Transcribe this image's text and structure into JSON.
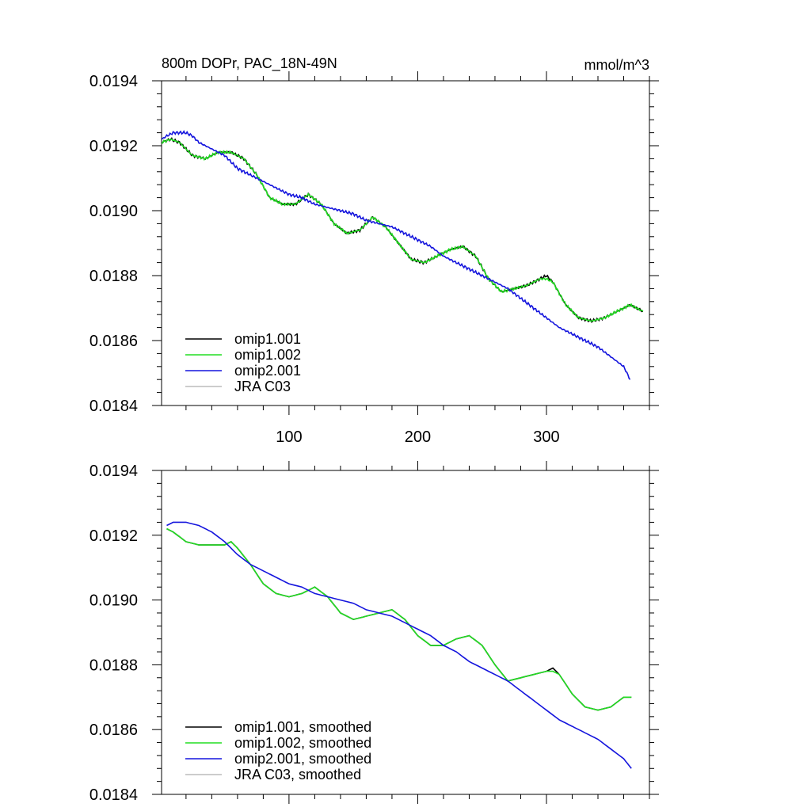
{
  "chart_data": [
    {
      "type": "line",
      "title": "800m DOPr, PAC_18N-49N",
      "units": "mmol/m^3",
      "xlim": [
        1,
        380
      ],
      "ylim": [
        0.0184,
        0.0194
      ],
      "xticks": [
        100,
        200,
        300
      ],
      "xtick_labels": [
        "100",
        "200",
        "300"
      ],
      "yticks": [
        0.0184,
        0.0186,
        0.0188,
        0.019,
        0.0192,
        0.0194
      ],
      "ytick_labels": [
        "0.0184",
        "0.0186",
        "0.0188",
        "0.0190",
        "0.0192",
        "0.0194"
      ],
      "legend_position": "bottom-left",
      "series": [
        {
          "name": "omip1.001",
          "color": "#000000",
          "x": [
            1,
            8,
            15,
            25,
            35,
            45,
            55,
            65,
            75,
            85,
            95,
            105,
            115,
            125,
            135,
            145,
            155,
            165,
            175,
            185,
            195,
            205,
            215,
            225,
            235,
            245,
            255,
            265,
            275,
            285,
            295,
            300,
            305,
            315,
            325,
            335,
            345,
            355,
            365,
            375
          ],
          "y": [
            0.01921,
            0.01922,
            0.01921,
            0.01917,
            0.01916,
            0.01918,
            0.01918,
            0.01916,
            0.01911,
            0.01904,
            0.01902,
            0.01902,
            0.01905,
            0.01902,
            0.01896,
            0.01893,
            0.01894,
            0.01898,
            0.01895,
            0.0189,
            0.01885,
            0.01884,
            0.01886,
            0.01888,
            0.01889,
            0.01886,
            0.01879,
            0.01875,
            0.01876,
            0.01877,
            0.01879,
            0.0188,
            0.01878,
            0.01871,
            0.01867,
            0.01866,
            0.01867,
            0.01869,
            0.01871,
            0.01869
          ]
        },
        {
          "name": "omip1.002",
          "color": "#22dd22",
          "x": [
            1,
            8,
            15,
            25,
            35,
            45,
            55,
            65,
            75,
            85,
            95,
            105,
            115,
            125,
            135,
            145,
            155,
            165,
            175,
            185,
            195,
            205,
            215,
            225,
            235,
            245,
            255,
            265,
            275,
            285,
            295,
            300,
            305,
            315,
            325,
            335,
            345,
            355,
            365,
            375
          ],
          "y": [
            0.01921,
            0.01922,
            0.01921,
            0.01917,
            0.01916,
            0.01918,
            0.01918,
            0.01916,
            0.01911,
            0.01904,
            0.01902,
            0.01902,
            0.01905,
            0.01902,
            0.01896,
            0.01893,
            0.01894,
            0.01898,
            0.01895,
            0.0189,
            0.01885,
            0.01884,
            0.01886,
            0.01888,
            0.01889,
            0.01886,
            0.01879,
            0.01875,
            0.01876,
            0.01877,
            0.01879,
            0.01879,
            0.01878,
            0.01871,
            0.01867,
            0.01866,
            0.01867,
            0.01869,
            0.01871,
            0.01869
          ]
        },
        {
          "name": "omip2.001",
          "color": "#1515dd",
          "x": [
            1,
            5,
            10,
            15,
            20,
            25,
            30,
            40,
            50,
            60,
            70,
            80,
            90,
            100,
            110,
            120,
            130,
            140,
            150,
            160,
            170,
            180,
            190,
            200,
            210,
            220,
            230,
            240,
            250,
            260,
            270,
            280,
            290,
            300,
            310,
            320,
            330,
            340,
            350,
            360,
            365
          ],
          "y": [
            0.01922,
            0.01923,
            0.01924,
            0.01924,
            0.01924,
            0.01923,
            0.01921,
            0.01919,
            0.01917,
            0.01913,
            0.01911,
            0.01909,
            0.01907,
            0.01905,
            0.01904,
            0.01902,
            0.01901,
            0.019,
            0.01899,
            0.01897,
            0.01896,
            0.01895,
            0.01893,
            0.01891,
            0.01889,
            0.01886,
            0.01884,
            0.01882,
            0.0188,
            0.01878,
            0.01876,
            0.01873,
            0.0187,
            0.01867,
            0.01864,
            0.01862,
            0.0186,
            0.01858,
            0.01855,
            0.01852,
            0.01848
          ]
        },
        {
          "name": "JRA C03",
          "color": "#bbbbbb",
          "x": [],
          "y": []
        }
      ]
    },
    {
      "type": "line",
      "title": "",
      "xlim": [
        1,
        380
      ],
      "ylim": [
        0.0184,
        0.0194
      ],
      "xticks": [
        100,
        200,
        300
      ],
      "xtick_labels": [],
      "yticks": [
        0.0184,
        0.0186,
        0.0188,
        0.019,
        0.0192,
        0.0194
      ],
      "ytick_labels": [
        "0.0184",
        "0.0186",
        "0.0188",
        "0.0190",
        "0.0192",
        "0.0194"
      ],
      "legend_position": "bottom-left",
      "series": [
        {
          "name": "omip1.001, smoothed",
          "color": "#000000",
          "x": [
            5,
            10,
            20,
            30,
            40,
            50,
            55,
            60,
            70,
            80,
            90,
            100,
            110,
            120,
            130,
            140,
            150,
            160,
            170,
            180,
            190,
            200,
            210,
            220,
            230,
            240,
            250,
            260,
            270,
            280,
            290,
            300,
            305,
            310,
            320,
            330,
            340,
            350,
            360,
            366
          ],
          "y": [
            0.01922,
            0.01921,
            0.01918,
            0.01917,
            0.01917,
            0.01917,
            0.01918,
            0.01916,
            0.01911,
            0.01905,
            0.01902,
            0.01901,
            0.01902,
            0.01904,
            0.01901,
            0.01896,
            0.01894,
            0.01895,
            0.01896,
            0.01897,
            0.01894,
            0.01889,
            0.01886,
            0.01886,
            0.01888,
            0.01889,
            0.01886,
            0.0188,
            0.01875,
            0.01876,
            0.01877,
            0.01878,
            0.01879,
            0.01877,
            0.01871,
            0.01867,
            0.01866,
            0.01867,
            0.0187,
            0.0187
          ]
        },
        {
          "name": "omip1.002, smoothed",
          "color": "#22dd22",
          "x": [
            5,
            10,
            20,
            30,
            40,
            50,
            55,
            60,
            70,
            80,
            90,
            100,
            110,
            120,
            130,
            140,
            150,
            160,
            170,
            180,
            190,
            200,
            210,
            220,
            230,
            240,
            250,
            260,
            270,
            280,
            290,
            300,
            305,
            310,
            320,
            330,
            340,
            350,
            360,
            366
          ],
          "y": [
            0.01922,
            0.01921,
            0.01918,
            0.01917,
            0.01917,
            0.01917,
            0.01918,
            0.01916,
            0.01911,
            0.01905,
            0.01902,
            0.01901,
            0.01902,
            0.01904,
            0.01901,
            0.01896,
            0.01894,
            0.01895,
            0.01896,
            0.01897,
            0.01894,
            0.01889,
            0.01886,
            0.01886,
            0.01888,
            0.01889,
            0.01886,
            0.0188,
            0.01875,
            0.01876,
            0.01877,
            0.01878,
            0.01878,
            0.01877,
            0.01871,
            0.01867,
            0.01866,
            0.01867,
            0.0187,
            0.0187
          ]
        },
        {
          "name": "omip2.001, smoothed",
          "color": "#1515dd",
          "x": [
            5,
            10,
            20,
            30,
            40,
            50,
            60,
            70,
            80,
            90,
            100,
            110,
            120,
            130,
            140,
            150,
            160,
            170,
            180,
            190,
            200,
            210,
            220,
            230,
            240,
            250,
            260,
            270,
            280,
            290,
            300,
            310,
            320,
            330,
            340,
            350,
            360,
            366
          ],
          "y": [
            0.01923,
            0.01924,
            0.01924,
            0.01923,
            0.01921,
            0.01918,
            0.01914,
            0.01911,
            0.01909,
            0.01907,
            0.01905,
            0.01904,
            0.01902,
            0.01901,
            0.019,
            0.01899,
            0.01897,
            0.01896,
            0.01895,
            0.01893,
            0.01891,
            0.01889,
            0.01886,
            0.01884,
            0.01881,
            0.01879,
            0.01877,
            0.01875,
            0.01872,
            0.01869,
            0.01866,
            0.01863,
            0.01861,
            0.01859,
            0.01857,
            0.01854,
            0.01851,
            0.01848
          ]
        },
        {
          "name": "JRA C03, smoothed",
          "color": "#bbbbbb",
          "x": [],
          "y": []
        }
      ]
    }
  ]
}
